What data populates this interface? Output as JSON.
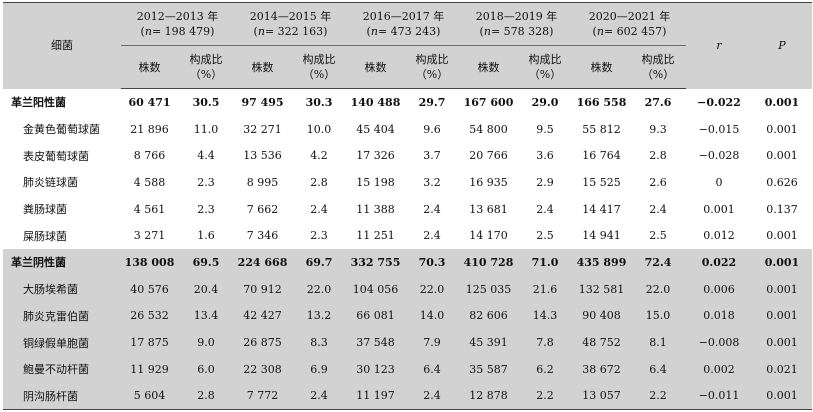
{
  "header": {
    "bacteria_label": "细菌",
    "periods": [
      {
        "years": "2012—2013 年",
        "n_label": "n",
        "n_value": "= 198 479)"
      },
      {
        "years": "2014—2015 年",
        "n_label": "n",
        "n_value": "= 322 163)"
      },
      {
        "years": "2016—2017 年",
        "n_label": "n",
        "n_value": "= 473 243)"
      },
      {
        "years": "2018—2019 年",
        "n_label": "n",
        "n_value": "= 578 328)"
      },
      {
        "years": "2020—2021 年",
        "n_label": "n",
        "n_value": "= 602 457)"
      }
    ],
    "count_label": "株数",
    "ratio_label": "构成比",
    "ratio_unit": "（%）",
    "r_label": "r",
    "p_label": "P"
  },
  "groups": [
    {
      "name": "革兰阳性菌",
      "values": [
        "60 471",
        "30.5",
        "97 495",
        "30.3",
        "140 488",
        "29.7",
        "167 600",
        "29.0",
        "166 558",
        "27.6"
      ],
      "r": "−0.022",
      "p": "0.001",
      "items": [
        {
          "name": "金黄色葡萄球菌",
          "values": [
            "21 896",
            "11.0",
            "32 271",
            "10.0",
            "45 404",
            "9.6",
            "54 800",
            "9.5",
            "55 812",
            "9.3"
          ],
          "r": "−0.015",
          "p": "0.001"
        },
        {
          "name": "表皮葡萄球菌",
          "values": [
            "8 766",
            "4.4",
            "13 536",
            "4.2",
            "17 326",
            "3.7",
            "20 766",
            "3.6",
            "16 764",
            "2.8"
          ],
          "r": "−0.028",
          "p": "0.001"
        },
        {
          "name": "肺炎链球菌",
          "values": [
            "4 588",
            "2.3",
            "8 995",
            "2.8",
            "15 198",
            "3.2",
            "16 935",
            "2.9",
            "15 525",
            "2.6"
          ],
          "r": "0",
          "p": "0.626"
        },
        {
          "name": "粪肠球菌",
          "values": [
            "4 561",
            "2.3",
            "7 662",
            "2.4",
            "11 388",
            "2.4",
            "13 681",
            "2.4",
            "14 417",
            "2.4"
          ],
          "r": "0.001",
          "p": "0.137"
        },
        {
          "name": "屎肠球菌",
          "values": [
            "3 271",
            "1.6",
            "7 346",
            "2.3",
            "11 251",
            "2.4",
            "14 170",
            "2.5",
            "14 941",
            "2.5"
          ],
          "r": "0.012",
          "p": "0.001"
        }
      ]
    },
    {
      "name": "革兰阴性菌",
      "values": [
        "138 008",
        "69.5",
        "224 668",
        "69.7",
        "332 755",
        "70.3",
        "410 728",
        "71.0",
        "435 899",
        "72.4"
      ],
      "r": "0.022",
      "p": "0.001",
      "items": [
        {
          "name": "大肠埃希菌",
          "values": [
            "40 576",
            "20.4",
            "70 912",
            "22.0",
            "104 056",
            "22.0",
            "125 035",
            "21.6",
            "132 581",
            "22.0"
          ],
          "r": "0.006",
          "p": "0.001"
        },
        {
          "name": "肺炎克雷伯菌",
          "values": [
            "26 532",
            "13.4",
            "42 427",
            "13.2",
            "66 081",
            "14.0",
            "82 606",
            "14.3",
            "90 408",
            "15.0"
          ],
          "r": "0.018",
          "p": "0.001"
        },
        {
          "name": "铜绿假单胞菌",
          "values": [
            "17 875",
            "9.0",
            "26 875",
            "8.3",
            "37 548",
            "7.9",
            "45 391",
            "7.8",
            "48 752",
            "8.1"
          ],
          "r": "−0.008",
          "p": "0.001"
        },
        {
          "name": "鲍曼不动杆菌",
          "values": [
            "11 929",
            "6.0",
            "22 308",
            "6.9",
            "30 123",
            "6.4",
            "35 587",
            "6.2",
            "38 672",
            "6.4"
          ],
          "r": "0.002",
          "p": "0.021"
        },
        {
          "name": "阴沟肠杆菌",
          "values": [
            "5 604",
            "2.8",
            "7 772",
            "2.4",
            "11 197",
            "2.4",
            "12 878",
            "2.2",
            "13 057",
            "2.2"
          ],
          "r": "−0.011",
          "p": "0.001"
        }
      ]
    }
  ]
}
